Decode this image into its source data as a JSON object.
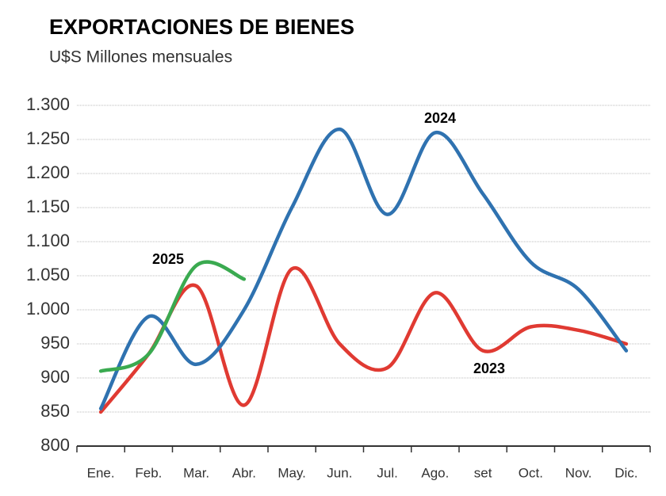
{
  "chart_data": {
    "type": "line",
    "title": "EXPORTACIONES DE BIENES",
    "subtitle": "U$S Millones  mensuales",
    "categories": [
      "Ene.",
      "Feb.",
      "Mar.",
      "Abr.",
      "May.",
      "Jun.",
      "Jul.",
      "Ago.",
      "set",
      "Oct.",
      "Nov.",
      "Dic."
    ],
    "series": [
      {
        "name": "2024",
        "color": "#2f72b0",
        "values": [
          855,
          990,
          920,
          1000,
          1150,
          1265,
          1140,
          1260,
          1170,
          1070,
          1030,
          940
        ]
      },
      {
        "name": "2023",
        "color": "#e03a32",
        "values": [
          850,
          935,
          1035,
          860,
          1060,
          950,
          915,
          1025,
          940,
          975,
          970,
          950
        ]
      },
      {
        "name": "2025",
        "color": "#3aaa50",
        "values": [
          910,
          935,
          1065,
          1045,
          null,
          null,
          null,
          null,
          null,
          null,
          null,
          null
        ]
      }
    ],
    "ylim": [
      800,
      1300
    ],
    "yticks": [
      800,
      850,
      900,
      950,
      {
        "value": 1000,
        "label": "1.000"
      },
      {
        "value": 1050,
        "label": "1.050"
      },
      {
        "value": 1100,
        "label": "1.100"
      },
      {
        "value": 1150,
        "label": "1.150"
      },
      {
        "value": 1200,
        "label": "1.200"
      },
      {
        "value": 1250,
        "label": "1.250"
      },
      {
        "value": 1300,
        "label": "1.300"
      }
    ],
    "grid": true
  }
}
